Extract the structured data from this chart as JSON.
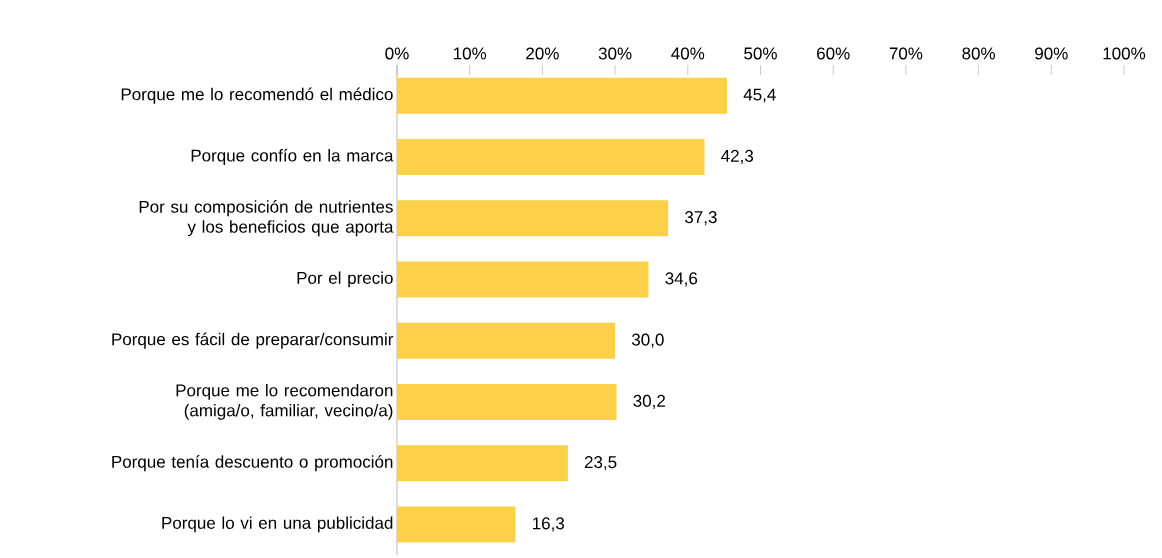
{
  "chart_data": {
    "type": "bar",
    "orientation": "horizontal",
    "categories": [
      "Porque me lo recomendó el médico",
      "Porque confío en la marca",
      "Por su composición de nutrientes y los beneficios que aporta",
      "Por el precio",
      "Porque es fácil de preparar/consumir",
      "Porque me lo recomendaron (amiga/o, familiar, vecino/a)",
      "Porque tenía descuento o promoción",
      "Porque lo vi en una publicidad"
    ],
    "values": [
      45.4,
      42.3,
      37.3,
      34.6,
      30.0,
      30.2,
      23.5,
      16.3
    ],
    "value_labels": [
      "45,4",
      "42,3",
      "37,3",
      "34,6",
      "30,0",
      "30,2",
      "23,5",
      "16,3"
    ],
    "color": "#fdd04a",
    "xlim": [
      0,
      100
    ],
    "xticks": [
      {
        "value": 0,
        "label": "0%"
      },
      {
        "value": 10,
        "label": "10%"
      },
      {
        "value": 20,
        "label": "20%"
      },
      {
        "value": 30,
        "label": "30%"
      },
      {
        "value": 40,
        "label": "40%"
      },
      {
        "value": 50,
        "label": "50%"
      },
      {
        "value": 60,
        "label": "60%"
      },
      {
        "value": 70,
        "label": "70%"
      },
      {
        "value": 80,
        "label": "80%"
      },
      {
        "value": 90,
        "label": "90%"
      },
      {
        "value": 100,
        "label": "100%"
      }
    ]
  }
}
